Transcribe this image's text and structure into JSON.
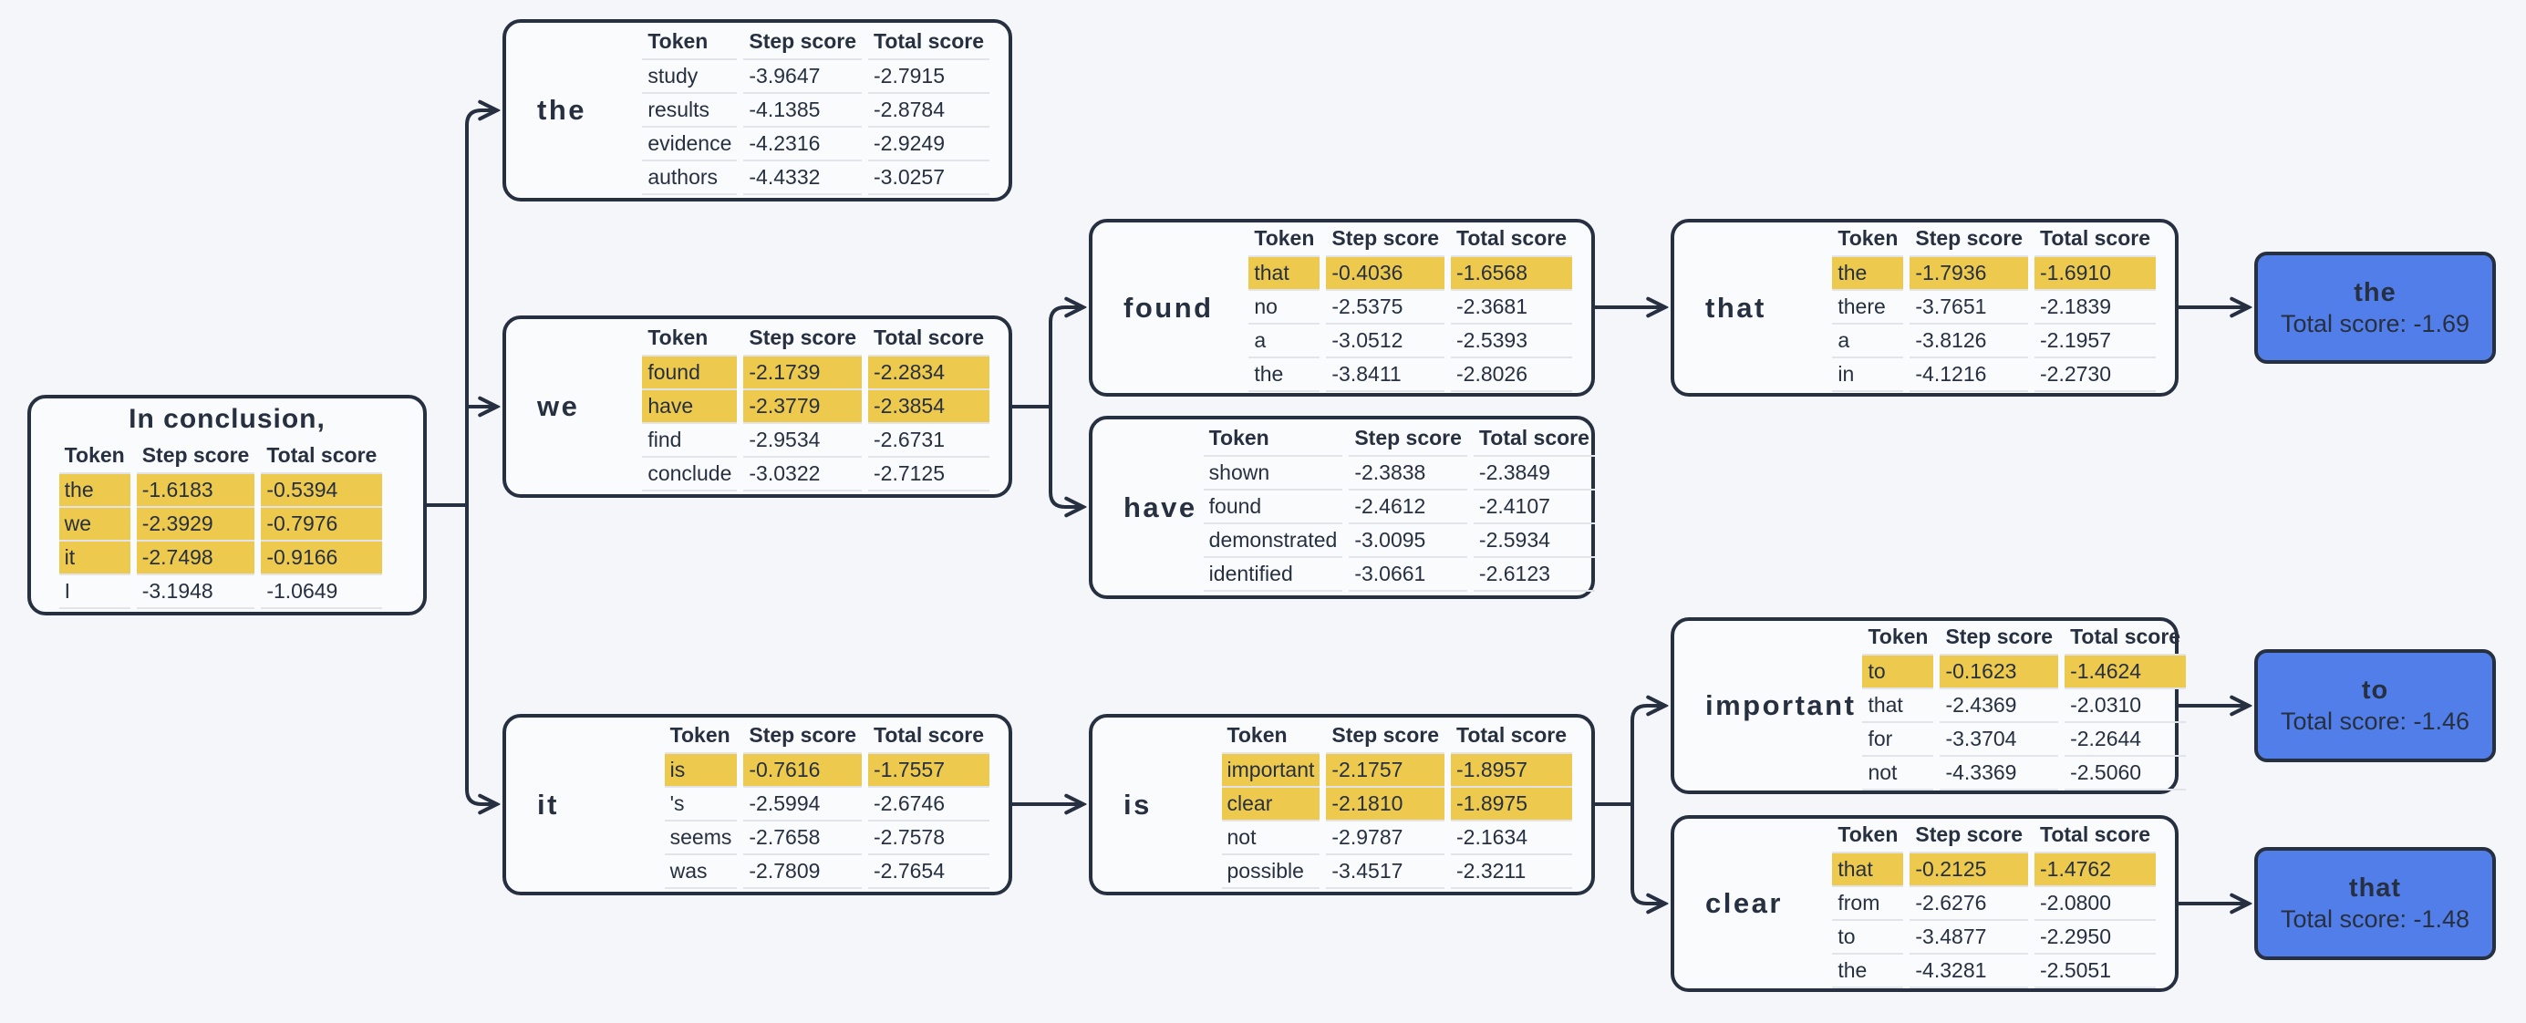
{
  "colors": {
    "background": "#f4f6f9",
    "box_background": "#fafbfd",
    "line": "#273040",
    "highlight_yellow": "#edc94d",
    "result_blue": "#527ee9",
    "row_divider": "#e2e4ea"
  },
  "table_headers": {
    "token": "Token",
    "step": "Step score",
    "total": "Total score"
  },
  "root": {
    "title": "In conclusion,",
    "rows": [
      {
        "token": "the",
        "step": "-1.6183",
        "total": "-0.5394",
        "highlight": true
      },
      {
        "token": "we",
        "step": "-2.3929",
        "total": "-0.7976",
        "highlight": true
      },
      {
        "token": "it",
        "step": "-2.7498",
        "total": "-0.9166",
        "highlight": true
      },
      {
        "token": "I",
        "step": "-3.1948",
        "total": "-1.0649",
        "highlight": false
      }
    ]
  },
  "nodes": {
    "the": {
      "label": "the",
      "rows": [
        {
          "token": "study",
          "step": "-3.9647",
          "total": "-2.7915",
          "highlight": false
        },
        {
          "token": "results",
          "step": "-4.1385",
          "total": "-2.8784",
          "highlight": false
        },
        {
          "token": "evidence",
          "step": "-4.2316",
          "total": "-2.9249",
          "highlight": false
        },
        {
          "token": "authors",
          "step": "-4.4332",
          "total": "-3.0257",
          "highlight": false
        }
      ]
    },
    "we": {
      "label": "we",
      "rows": [
        {
          "token": "found",
          "step": "-2.1739",
          "total": "-2.2834",
          "highlight": true
        },
        {
          "token": "have",
          "step": "-2.3779",
          "total": "-2.3854",
          "highlight": true
        },
        {
          "token": "find",
          "step": "-2.9534",
          "total": "-2.6731",
          "highlight": false
        },
        {
          "token": "conclude",
          "step": "-3.0322",
          "total": "-2.7125",
          "highlight": false
        }
      ]
    },
    "it": {
      "label": "it",
      "rows": [
        {
          "token": "is",
          "step": "-0.7616",
          "total": "-1.7557",
          "highlight": true
        },
        {
          "token": "'s",
          "step": "-2.5994",
          "total": "-2.6746",
          "highlight": false
        },
        {
          "token": "seems",
          "step": "-2.7658",
          "total": "-2.7578",
          "highlight": false
        },
        {
          "token": "was",
          "step": "-2.7809",
          "total": "-2.7654",
          "highlight": false
        }
      ]
    },
    "found": {
      "label": "found",
      "rows": [
        {
          "token": "that",
          "step": "-0.4036",
          "total": "-1.6568",
          "highlight": true
        },
        {
          "token": "no",
          "step": "-2.5375",
          "total": "-2.3681",
          "highlight": false
        },
        {
          "token": "a",
          "step": "-3.0512",
          "total": "-2.5393",
          "highlight": false
        },
        {
          "token": "the",
          "step": "-3.8411",
          "total": "-2.8026",
          "highlight": false
        }
      ]
    },
    "have": {
      "label": "have",
      "rows": [
        {
          "token": "shown",
          "step": "-2.3838",
          "total": "-2.3849",
          "highlight": false
        },
        {
          "token": "found",
          "step": "-2.4612",
          "total": "-2.4107",
          "highlight": false
        },
        {
          "token": "demonstrated",
          "step": "-3.0095",
          "total": "-2.5934",
          "highlight": false
        },
        {
          "token": "identified",
          "step": "-3.0661",
          "total": "-2.6123",
          "highlight": false
        }
      ]
    },
    "is": {
      "label": "is",
      "rows": [
        {
          "token": "important",
          "step": "-2.1757",
          "total": "-1.8957",
          "highlight": true
        },
        {
          "token": "clear",
          "step": "-2.1810",
          "total": "-1.8975",
          "highlight": true
        },
        {
          "token": "not",
          "step": "-2.9787",
          "total": "-2.1634",
          "highlight": false
        },
        {
          "token": "possible",
          "step": "-3.4517",
          "total": "-2.3211",
          "highlight": false
        }
      ]
    },
    "that": {
      "label": "that",
      "rows": [
        {
          "token": "the",
          "step": "-1.7936",
          "total": "-1.6910",
          "highlight": true
        },
        {
          "token": "there",
          "step": "-3.7651",
          "total": "-2.1839",
          "highlight": false
        },
        {
          "token": "a",
          "step": "-3.8126",
          "total": "-2.1957",
          "highlight": false
        },
        {
          "token": "in",
          "step": "-4.1216",
          "total": "-2.2730",
          "highlight": false
        }
      ]
    },
    "important": {
      "label": "important",
      "rows": [
        {
          "token": "to",
          "step": "-0.1623",
          "total": "-1.4624",
          "highlight": true
        },
        {
          "token": "that",
          "step": "-2.4369",
          "total": "-2.0310",
          "highlight": false
        },
        {
          "token": "for",
          "step": "-3.3704",
          "total": "-2.2644",
          "highlight": false
        },
        {
          "token": "not",
          "step": "-4.3369",
          "total": "-2.5060",
          "highlight": false
        }
      ]
    },
    "clear": {
      "label": "clear",
      "rows": [
        {
          "token": "that",
          "step": "-0.2125",
          "total": "-1.4762",
          "highlight": true
        },
        {
          "token": "from",
          "step": "-2.6276",
          "total": "-2.0800",
          "highlight": false
        },
        {
          "token": "to",
          "step": "-3.4877",
          "total": "-2.2950",
          "highlight": false
        },
        {
          "token": "the",
          "step": "-4.3281",
          "total": "-2.5051",
          "highlight": false
        }
      ]
    }
  },
  "results": {
    "the": {
      "token": "the",
      "score": "Total score: -1.69"
    },
    "to": {
      "token": "to",
      "score": "Total score: -1.46"
    },
    "that": {
      "token": "that",
      "score": "Total score: -1.48"
    }
  }
}
